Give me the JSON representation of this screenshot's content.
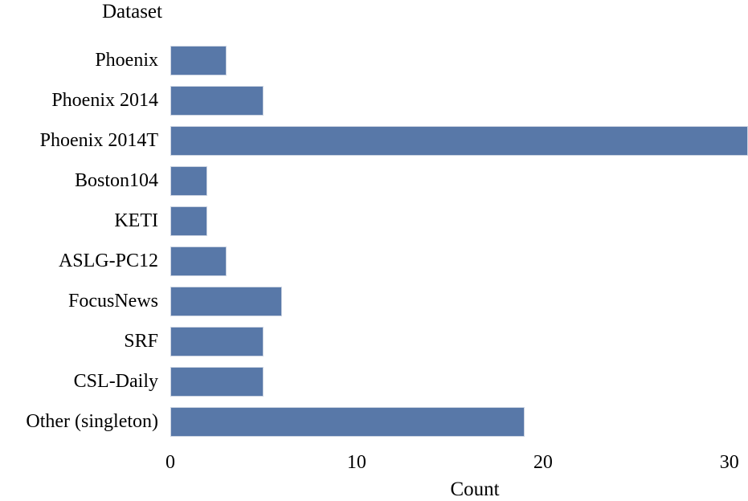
{
  "chart_data": {
    "type": "bar",
    "orientation": "horizontal",
    "ylabel": "Dataset",
    "xlabel": "Count",
    "categories": [
      "Phoenix",
      "Phoenix 2014",
      "Phoenix 2014T",
      "Boston104",
      "KETI",
      "ASLG-PC12",
      "FocusNews",
      "SRF",
      "CSL-Daily",
      "Other (singleton)"
    ],
    "values": [
      3,
      5,
      31,
      2,
      2,
      3,
      6,
      5,
      5,
      19
    ],
    "xticks": [
      0,
      10,
      20,
      30
    ],
    "xlim": [
      0,
      31
    ],
    "grid": "off",
    "legend": "none",
    "bar_color": "#5878a8",
    "bar_border_color": "#ccd4e2",
    "text_color": "#000000",
    "background_color": "#ffffff"
  }
}
